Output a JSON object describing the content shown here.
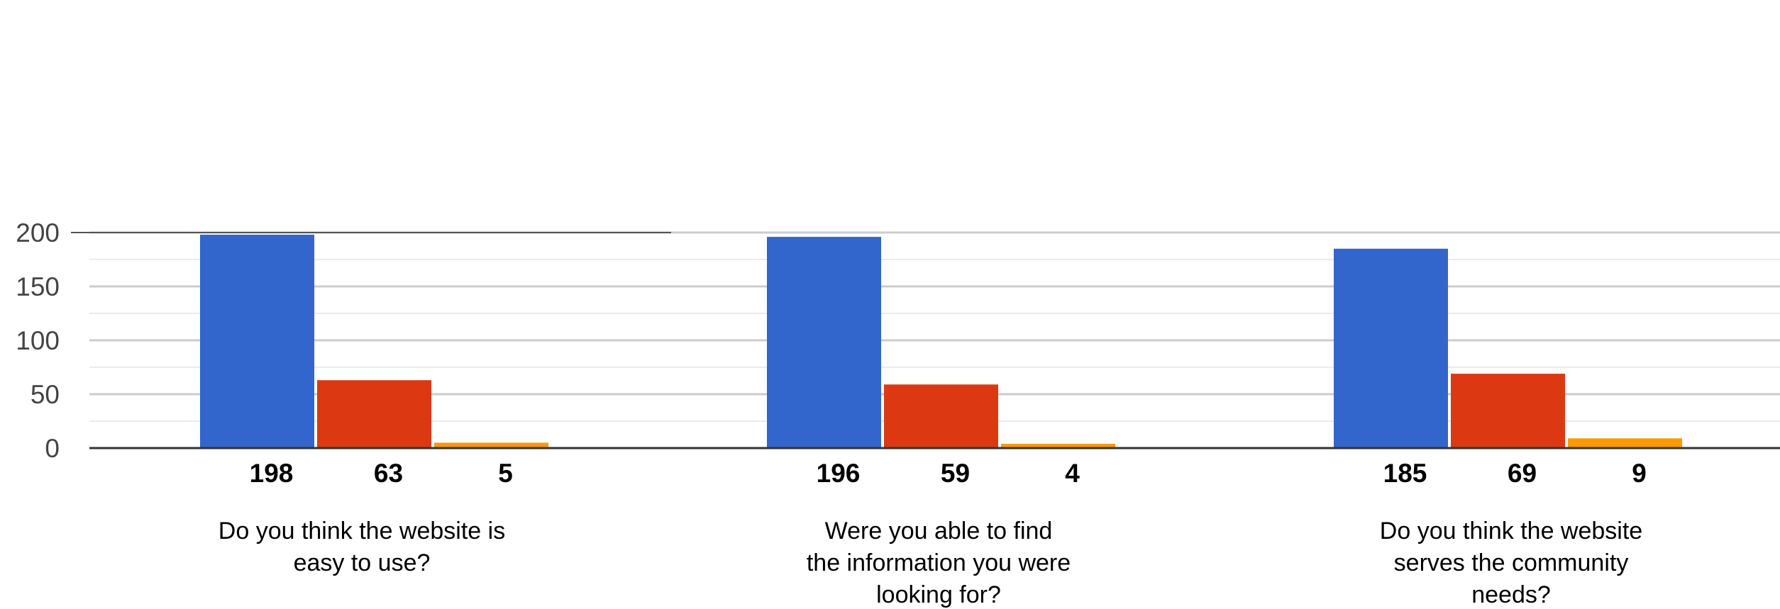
{
  "chart_data": {
    "type": "bar",
    "categories": [
      [
        "Do you think the website is",
        "easy to use?"
      ],
      [
        "Were you able to find",
        "the information you were",
        "looking for?"
      ],
      [
        "Do you think the website",
        "serves the community",
        "needs?"
      ]
    ],
    "series": [
      {
        "color": "#3366cc",
        "values": [
          198,
          196,
          185
        ]
      },
      {
        "color": "#dc3912",
        "values": [
          63,
          59,
          69
        ]
      },
      {
        "color": "#ff9900",
        "values": [
          5,
          4,
          9
        ]
      }
    ],
    "data_labels": [
      [
        "198",
        "63",
        "5"
      ],
      [
        "196",
        "59",
        "4"
      ],
      [
        "185",
        "69",
        "9"
      ]
    ],
    "yticks": [
      "200",
      "150",
      "100",
      "50",
      "0"
    ],
    "ylim": [
      0,
      200
    ],
    "grid": true,
    "legend": "none"
  }
}
